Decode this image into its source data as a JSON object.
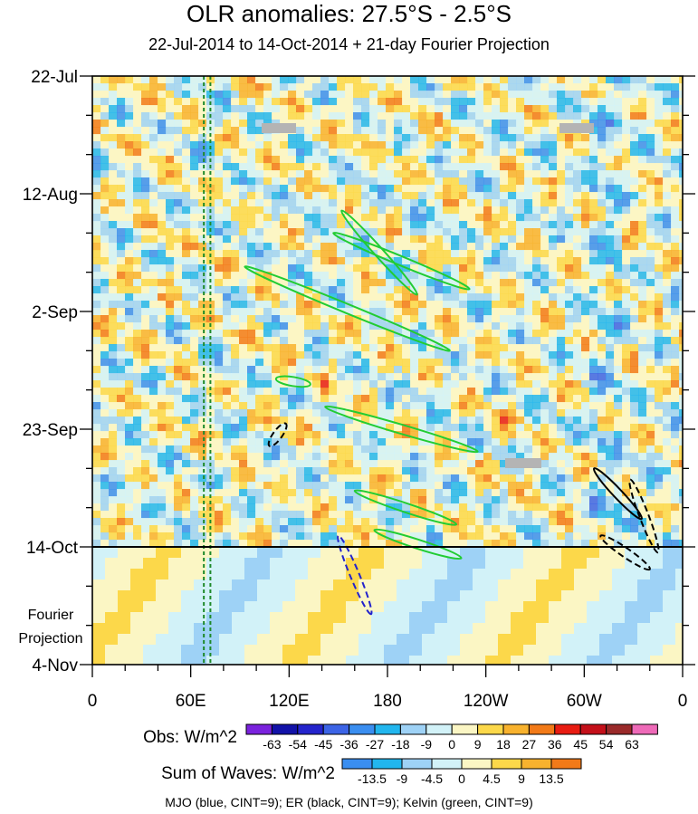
{
  "chart_data": {
    "type": "heatmap",
    "title": "OLR anomalies: 27.5°S - 2.5°S",
    "subtitle": "22-Jul-2014 to 14-Oct-2014 + 21-day Fourier Projection",
    "x_tick_labels": [
      "0",
      "60E",
      "120E",
      "180",
      "120W",
      "60W",
      "0"
    ],
    "x_ticks_deg": [
      0,
      60,
      120,
      180,
      240,
      300,
      360
    ],
    "y_tick_labels": [
      "22-Jul",
      "12-Aug",
      "2-Sep",
      "23-Sep",
      "14-Oct",
      "4-Nov"
    ],
    "y_ticks_day": [
      0,
      21,
      42,
      63,
      84,
      105
    ],
    "ylim_days": [
      0,
      105
    ],
    "obs_end_day": 84,
    "projection_label": [
      "Fourier",
      "Projection"
    ],
    "obs_colorbar": {
      "label": "Obs: W/m^2",
      "levels": [
        -63,
        -54,
        -45,
        -36,
        -27,
        -18,
        -9,
        0,
        9,
        18,
        27,
        36,
        45,
        54,
        63
      ],
      "colors": [
        "#7a22dd",
        "#1212a8",
        "#2424cc",
        "#3c64e6",
        "#3a8ef0",
        "#22b6ee",
        "#9ed2f6",
        "#d2f2f8",
        "#fbf6c4",
        "#fcd84a",
        "#f8b22e",
        "#f27a18",
        "#e81c12",
        "#c4101a",
        "#9a2a2a",
        "#ee6ab8"
      ]
    },
    "waves_colorbar": {
      "label": "Sum of Waves: W/m^2",
      "levels": [
        -13.5,
        -9,
        -4.5,
        0,
        4.5,
        9,
        13.5
      ],
      "colors": [
        "#3a8ef0",
        "#22b6ee",
        "#9ed2f6",
        "#d2f2f8",
        "#fbf6c4",
        "#fcd84a",
        "#f8b22e",
        "#f27a18"
      ]
    },
    "legend_text": "MJO (blue, CINT=9); ER (black, CINT=9); Kelvin (green, CINT=9)",
    "contours": [
      {
        "wave": "Kelvin",
        "color": "#22cc33",
        "points": [
          [
            93,
            34
          ],
          [
            218,
            49
          ]
        ]
      },
      {
        "wave": "Kelvin",
        "color": "#22cc33",
        "points": [
          [
            152,
            24
          ],
          [
            198,
            39
          ]
        ]
      },
      {
        "wave": "Kelvin",
        "color": "#22cc33",
        "points": [
          [
            147,
            28
          ],
          [
            230,
            38
          ]
        ]
      },
      {
        "wave": "Kelvin",
        "color": "#22cc33",
        "points": [
          [
            142,
            59
          ],
          [
            235,
            67
          ]
        ]
      },
      {
        "wave": "Kelvin",
        "color": "#22cc33",
        "points": [
          [
            160,
            74
          ],
          [
            222,
            80
          ]
        ]
      },
      {
        "wave": "Kelvin",
        "color": "#22cc33",
        "points": [
          [
            172,
            81
          ],
          [
            225,
            86
          ]
        ]
      },
      {
        "wave": "Kelvin",
        "color": "#22cc33",
        "points": [
          [
            112,
            54
          ],
          [
            133,
            55
          ]
        ]
      },
      {
        "wave": "ER",
        "color": "#000000",
        "points": [
          [
            306,
            70
          ],
          [
            335,
            79
          ]
        ]
      },
      {
        "wave": "ER",
        "color": "#000000",
        "points": [
          [
            328,
            72
          ],
          [
            345,
            85
          ]
        ]
      },
      {
        "wave": "ER",
        "color": "#000000",
        "points": [
          [
            310,
            82
          ],
          [
            340,
            88
          ]
        ]
      },
      {
        "wave": "ER",
        "color": "#000000",
        "points": [
          [
            108,
            66
          ],
          [
            118,
            62
          ]
        ]
      },
      {
        "wave": "MJO",
        "color": "#2222cc",
        "points": [
          [
            150,
            82
          ],
          [
            170,
            96
          ]
        ]
      }
    ],
    "vertical_lines_deg": [
      68,
      72
    ]
  }
}
